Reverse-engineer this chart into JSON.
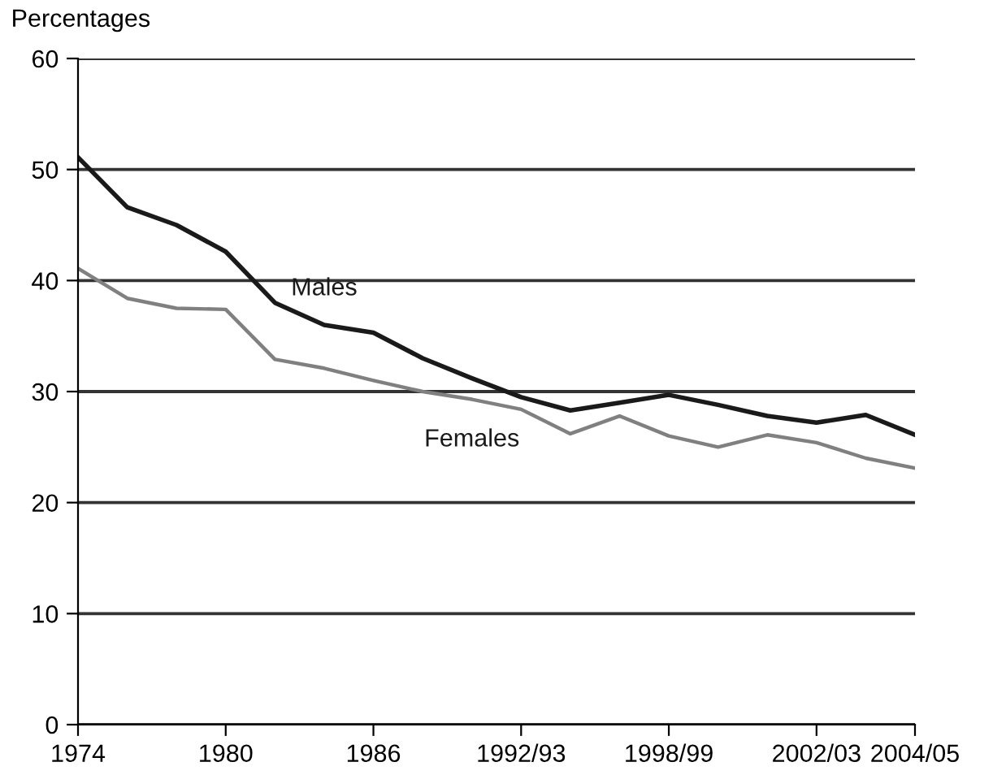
{
  "chart_data": {
    "type": "line",
    "ylabel": "Percentages",
    "ylim": [
      0,
      60
    ],
    "yticks": [
      0,
      10,
      20,
      30,
      40,
      50,
      60
    ],
    "categories": [
      "1974",
      null,
      null,
      "1980",
      null,
      null,
      "1986",
      null,
      null,
      "1992/93",
      null,
      null,
      "1998/99",
      null,
      null,
      "2002/03",
      null,
      "2004/05"
    ],
    "grid": "y",
    "legend": false,
    "marker": "none",
    "line_style": "solid",
    "series": [
      {
        "name": "Males",
        "color": "#1a1a1a",
        "values": [
          51.1,
          46.6,
          45.0,
          42.6,
          38.0,
          36.0,
          35.3,
          33.0,
          31.2,
          29.5,
          28.3,
          29.0,
          29.7,
          28.8,
          27.8,
          27.2,
          27.9,
          26.1
        ]
      },
      {
        "name": "Females",
        "color": "#808080",
        "values": [
          41.1,
          38.4,
          37.5,
          37.4,
          32.9,
          32.1,
          31.0,
          30.0,
          29.3,
          28.4,
          26.2,
          27.8,
          26.0,
          25.0,
          26.1,
          25.4,
          24.0,
          23.1
        ]
      }
    ]
  }
}
